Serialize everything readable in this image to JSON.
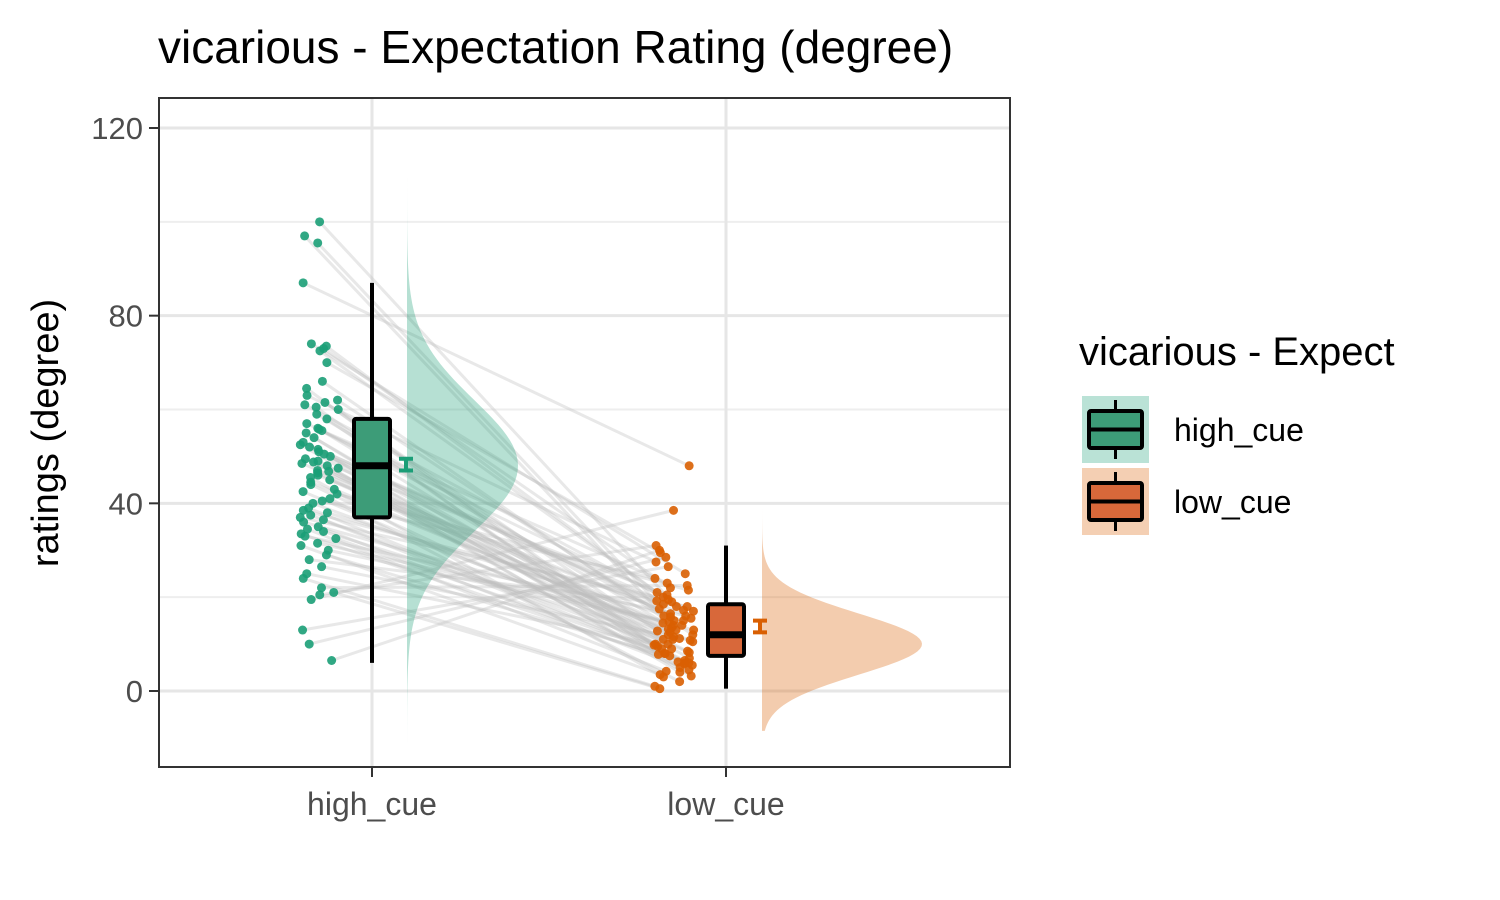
{
  "chart_data": {
    "type": "raincloud",
    "title": "vicarious  - Expectation Rating (degree)",
    "xlabel": "",
    "ylabel": "ratings (degree)",
    "categories": [
      "high_cue",
      "low_cue"
    ],
    "ylim": [
      -16,
      126
    ],
    "yticks": [
      0,
      40,
      80,
      120
    ],
    "grid": true,
    "legend": {
      "title": "vicarious  - Expect",
      "position": "right",
      "items": [
        "high_cue",
        "low_cue"
      ]
    },
    "colors": {
      "high_cue": "#1b9e77",
      "low_cue": "#d95f02",
      "pair_line": "#bdbdbd",
      "grid": "#e6e6e6"
    },
    "series": [
      {
        "name": "high_cue",
        "box": {
          "min": 6,
          "q1": 37,
          "median": 48,
          "q3": 58,
          "max": 87
        },
        "mean_ci": [
          47,
          49.5
        ],
        "density_range": [
          -11,
          118
        ],
        "density_peak": 48
      },
      {
        "name": "low_cue",
        "box": {
          "min": 0.5,
          "q1": 7.5,
          "median": 12,
          "q3": 18.5,
          "max": 31
        },
        "mean_ci": [
          12.5,
          15
        ],
        "density_range": [
          -8.5,
          57
        ],
        "density_peak": 10
      }
    ],
    "paired_points": {
      "high_cue": [
        100,
        97,
        95.5,
        87,
        73,
        74,
        73.5,
        72.5,
        70,
        66,
        63,
        62,
        61,
        60,
        59,
        58,
        57,
        56,
        55.5,
        55,
        54,
        53,
        52,
        51,
        50.5,
        50,
        49.5,
        49,
        48.5,
        48,
        47.5,
        47,
        46.5,
        46,
        45.5,
        45,
        44,
        43,
        42,
        41,
        40.5,
        40,
        39,
        38,
        37.5,
        37,
        36.5,
        36,
        35,
        34,
        33,
        32.5,
        31,
        30,
        29,
        28,
        25,
        24,
        22,
        21,
        20.5,
        19.5,
        13,
        10,
        6.5,
        64.5,
        61.5,
        60.5,
        55.8,
        52.5,
        51.5,
        48.8,
        46.8,
        44.5,
        42.5,
        38.5,
        34.5,
        33.5,
        31.5,
        26.5
      ],
      "low_cue": [
        18,
        16,
        15,
        48,
        22,
        25,
        21,
        20,
        29.5,
        14,
        27.5,
        12,
        19,
        9,
        13,
        8,
        17,
        11,
        23,
        6,
        10,
        15.5,
        7,
        18.5,
        12.5,
        5,
        14.5,
        9.5,
        16.5,
        4,
        20.5,
        11.5,
        8.5,
        13.5,
        3,
        17.5,
        6.5,
        10.5,
        21.5,
        2,
        24,
        12,
        7.5,
        15,
        5.5,
        19.5,
        9,
        13,
        4.5,
        11,
        16,
        8,
        3.5,
        14,
        6,
        18,
        10,
        1,
        22.5,
        0.5,
        31,
        38.5,
        26.5,
        28.5,
        30,
        9.8,
        12.8,
        7.8,
        15.8,
        5.8,
        17.2,
        3.2,
        11.2,
        13.2,
        8.2,
        19.2,
        4.2,
        6.2,
        14.8,
        10.8
      ]
    }
  }
}
